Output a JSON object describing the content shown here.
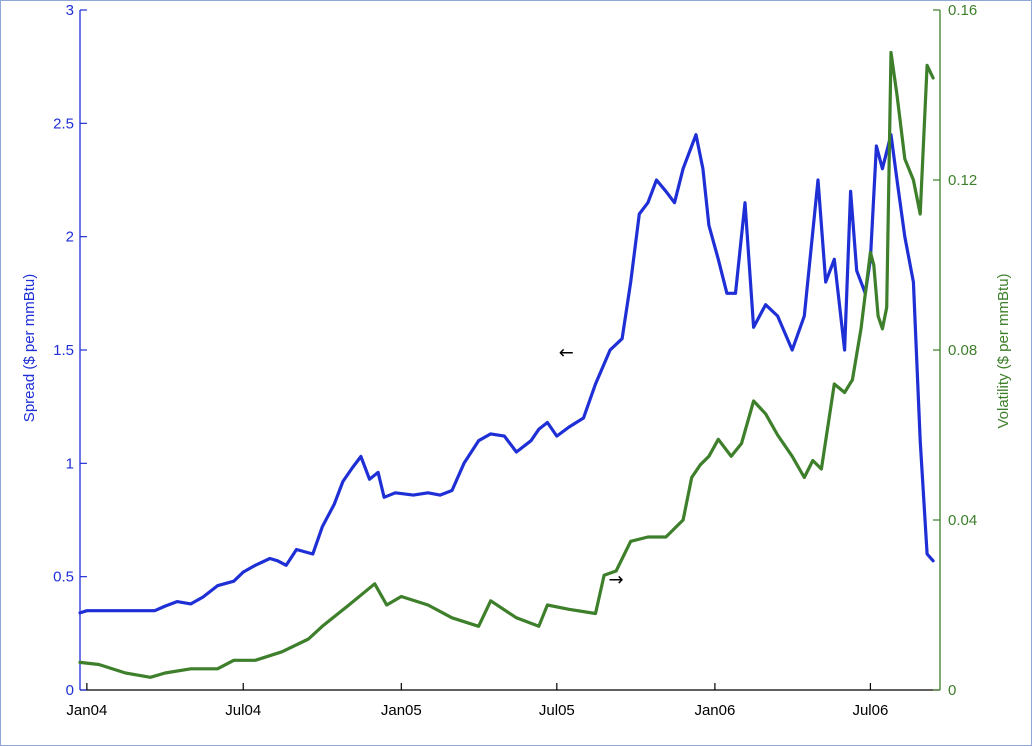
{
  "chart_data": {
    "type": "line",
    "xlabel": "",
    "x_ticks": [
      "Jan04",
      "Jul04",
      "Jan05",
      "Jul05",
      "Jan06",
      "Jul06"
    ],
    "x_tick_dates": [
      "2004-01-01",
      "2004-07-01",
      "2005-01-01",
      "2005-07-01",
      "2006-01-01",
      "2006-07-01"
    ],
    "xlim": [
      "2003-12-24",
      "2006-09-20"
    ],
    "y_left": {
      "label": "Spread ($ per mmBtu)",
      "color": "#1f2fd6",
      "ylim": [
        0,
        3
      ],
      "ticks": [
        "0",
        "0.5",
        "1",
        "1.5",
        "2",
        "2.5",
        "3"
      ]
    },
    "y_right": {
      "label": "Volatility ($ per mmBtu)",
      "color": "#3d7f2a",
      "ylim": [
        0,
        0.16
      ],
      "ticks": [
        "0",
        "0.04",
        "0.08",
        "0.12",
        "0.16"
      ]
    },
    "annotations": [
      {
        "text": "←",
        "x": "2005-07-12",
        "y": 1.49,
        "axis": "left"
      },
      {
        "text": "→",
        "x": "2005-09-08",
        "y": 0.026,
        "axis": "right"
      }
    ],
    "series": [
      {
        "axis": "left",
        "color": "#1f2fd6",
        "points": [
          [
            "2003-12-24",
            0.34
          ],
          [
            "2004-01-01",
            0.35
          ],
          [
            "2004-02-01",
            0.35
          ],
          [
            "2004-03-01",
            0.35
          ],
          [
            "2004-03-20",
            0.35
          ],
          [
            "2004-04-01",
            0.37
          ],
          [
            "2004-04-15",
            0.39
          ],
          [
            "2004-05-01",
            0.38
          ],
          [
            "2004-05-15",
            0.41
          ],
          [
            "2004-06-01",
            0.46
          ],
          [
            "2004-06-20",
            0.48
          ],
          [
            "2004-07-01",
            0.52
          ],
          [
            "2004-07-15",
            0.55
          ],
          [
            "2004-08-01",
            0.58
          ],
          [
            "2004-08-10",
            0.57
          ],
          [
            "2004-08-20",
            0.55
          ],
          [
            "2004-09-01",
            0.62
          ],
          [
            "2004-09-20",
            0.6
          ],
          [
            "2004-10-01",
            0.72
          ],
          [
            "2004-10-15",
            0.82
          ],
          [
            "2004-10-25",
            0.92
          ],
          [
            "2004-11-05",
            0.98
          ],
          [
            "2004-11-15",
            1.03
          ],
          [
            "2004-11-25",
            0.93
          ],
          [
            "2004-12-05",
            0.96
          ],
          [
            "2004-12-12",
            0.85
          ],
          [
            "2004-12-25",
            0.87
          ],
          [
            "2005-01-15",
            0.86
          ],
          [
            "2005-02-01",
            0.87
          ],
          [
            "2005-02-15",
            0.86
          ],
          [
            "2005-03-01",
            0.88
          ],
          [
            "2005-03-15",
            1.0
          ],
          [
            "2005-04-01",
            1.1
          ],
          [
            "2005-04-15",
            1.13
          ],
          [
            "2005-05-01",
            1.12
          ],
          [
            "2005-05-15",
            1.05
          ],
          [
            "2005-06-01",
            1.1
          ],
          [
            "2005-06-10",
            1.15
          ],
          [
            "2005-06-20",
            1.18
          ],
          [
            "2005-07-01",
            1.12
          ],
          [
            "2005-07-15",
            1.16
          ],
          [
            "2005-08-01",
            1.2
          ],
          [
            "2005-08-15",
            1.35
          ],
          [
            "2005-09-01",
            1.5
          ],
          [
            "2005-09-15",
            1.55
          ],
          [
            "2005-09-25",
            1.8
          ],
          [
            "2005-10-05",
            2.1
          ],
          [
            "2005-10-15",
            2.15
          ],
          [
            "2005-10-25",
            2.25
          ],
          [
            "2005-11-05",
            2.2
          ],
          [
            "2005-11-15",
            2.15
          ],
          [
            "2005-11-25",
            2.3
          ],
          [
            "2005-12-05",
            2.4
          ],
          [
            "2005-12-10",
            2.45
          ],
          [
            "2005-12-18",
            2.3
          ],
          [
            "2005-12-25",
            2.05
          ],
          [
            "2006-01-05",
            1.9
          ],
          [
            "2006-01-15",
            1.75
          ],
          [
            "2006-01-25",
            1.75
          ],
          [
            "2006-02-05",
            2.15
          ],
          [
            "2006-02-15",
            1.6
          ],
          [
            "2006-03-01",
            1.7
          ],
          [
            "2006-03-15",
            1.65
          ],
          [
            "2006-04-01",
            1.5
          ],
          [
            "2006-04-15",
            1.65
          ],
          [
            "2006-05-01",
            2.25
          ],
          [
            "2006-05-10",
            1.8
          ],
          [
            "2006-05-20",
            1.9
          ],
          [
            "2006-06-01",
            1.5
          ],
          [
            "2006-06-08",
            2.2
          ],
          [
            "2006-06-15",
            1.85
          ],
          [
            "2006-06-25",
            1.75
          ],
          [
            "2006-07-01",
            1.9
          ],
          [
            "2006-07-08",
            2.4
          ],
          [
            "2006-07-15",
            2.3
          ],
          [
            "2006-07-25",
            2.45
          ],
          [
            "2006-08-01",
            2.25
          ],
          [
            "2006-08-10",
            2.0
          ],
          [
            "2006-08-20",
            1.8
          ],
          [
            "2006-08-28",
            1.1
          ],
          [
            "2006-09-05",
            0.6
          ],
          [
            "2006-09-12",
            0.57
          ]
        ]
      },
      {
        "axis": "right",
        "color": "#3d7f2a",
        "points": [
          [
            "2003-12-24",
            0.0065
          ],
          [
            "2004-01-15",
            0.006
          ],
          [
            "2004-02-15",
            0.004
          ],
          [
            "2004-03-15",
            0.003
          ],
          [
            "2004-04-01",
            0.004
          ],
          [
            "2004-05-01",
            0.005
          ],
          [
            "2004-06-01",
            0.005
          ],
          [
            "2004-06-20",
            0.007
          ],
          [
            "2004-07-15",
            0.007
          ],
          [
            "2004-08-15",
            0.009
          ],
          [
            "2004-09-15",
            0.012
          ],
          [
            "2004-10-01",
            0.015
          ],
          [
            "2004-11-01",
            0.02
          ],
          [
            "2004-12-01",
            0.025
          ],
          [
            "2004-12-15",
            0.02
          ],
          [
            "2005-01-01",
            0.022
          ],
          [
            "2005-02-01",
            0.02
          ],
          [
            "2005-03-01",
            0.017
          ],
          [
            "2005-04-01",
            0.015
          ],
          [
            "2005-04-15",
            0.021
          ],
          [
            "2005-05-15",
            0.017
          ],
          [
            "2005-06-10",
            0.015
          ],
          [
            "2005-06-20",
            0.02
          ],
          [
            "2005-07-15",
            0.019
          ],
          [
            "2005-08-15",
            0.018
          ],
          [
            "2005-08-25",
            0.027
          ],
          [
            "2005-09-08",
            0.028
          ],
          [
            "2005-09-25",
            0.035
          ],
          [
            "2005-10-15",
            0.036
          ],
          [
            "2005-11-05",
            0.036
          ],
          [
            "2005-11-25",
            0.04
          ],
          [
            "2005-12-05",
            0.05
          ],
          [
            "2005-12-15",
            0.053
          ],
          [
            "2005-12-25",
            0.055
          ],
          [
            "2006-01-05",
            0.059
          ],
          [
            "2006-01-20",
            0.055
          ],
          [
            "2006-02-01",
            0.058
          ],
          [
            "2006-02-15",
            0.068
          ],
          [
            "2006-03-01",
            0.065
          ],
          [
            "2006-03-15",
            0.06
          ],
          [
            "2006-04-01",
            0.055
          ],
          [
            "2006-04-15",
            0.05
          ],
          [
            "2006-04-25",
            0.054
          ],
          [
            "2006-05-05",
            0.052
          ],
          [
            "2006-05-20",
            0.072
          ],
          [
            "2006-06-01",
            0.07
          ],
          [
            "2006-06-10",
            0.073
          ],
          [
            "2006-06-20",
            0.085
          ],
          [
            "2006-07-01",
            0.103
          ],
          [
            "2006-07-05",
            0.1
          ],
          [
            "2006-07-10",
            0.088
          ],
          [
            "2006-07-15",
            0.085
          ],
          [
            "2006-07-20",
            0.09
          ],
          [
            "2006-07-25",
            0.15
          ],
          [
            "2006-08-01",
            0.14
          ],
          [
            "2006-08-10",
            0.125
          ],
          [
            "2006-08-20",
            0.12
          ],
          [
            "2006-08-28",
            0.112
          ],
          [
            "2006-09-05",
            0.147
          ],
          [
            "2006-09-12",
            0.144
          ]
        ]
      }
    ]
  }
}
